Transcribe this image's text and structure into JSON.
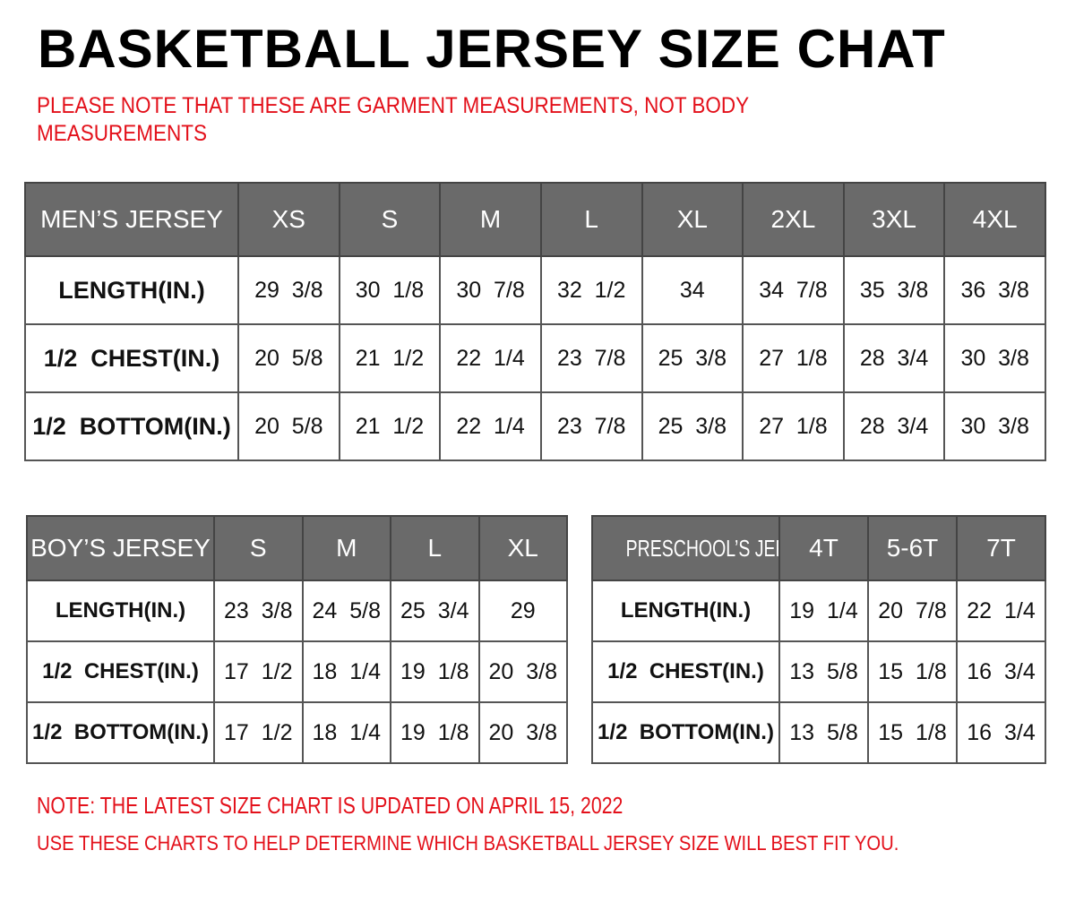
{
  "title": "BASKETBALL JERSEY SIZE CHAT",
  "note_garment": "PLEASE NOTE THAT THESE ARE GARMENT MEASUREMENTS, NOT BODY MEASUREMENTS",
  "note_updated": "NOTE: THE LATEST SIZE CHART IS UPDATED ON APRIL 15, 2022",
  "note_usage": "USE THESE CHARTS TO HELP DETERMINE WHICH  BASKETBALL JERSEY  SIZE WILL BEST FIT YOU.",
  "colors": {
    "header_bg": "#6a6a6a",
    "note_red": "#e3101a"
  },
  "tables": {
    "men": {
      "header": [
        "MEN’S JERSEY",
        "XS",
        "S",
        "M",
        "L",
        "XL",
        "2XL",
        "3XL",
        "4XL"
      ],
      "rows": [
        [
          "LENGTH(IN.)",
          "29  3/8",
          "30  1/8",
          "30  7/8",
          "32  1/2",
          "34",
          "34  7/8",
          "35  3/8",
          "36  3/8"
        ],
        [
          "1/2  CHEST(IN.)",
          "20  5/8",
          "21  1/2",
          "22  1/4",
          "23  7/8",
          "25  3/8",
          "27  1/8",
          "28  3/4",
          "30  3/8"
        ],
        [
          "1/2  BOTTOM(IN.)",
          "20  5/8",
          "21  1/2",
          "22  1/4",
          "23  7/8",
          "25  3/8",
          "27  1/8",
          "28  3/4",
          "30  3/8"
        ]
      ]
    },
    "boy": {
      "header": [
        "BOY’S JERSEY",
        "S",
        "M",
        "L",
        "XL"
      ],
      "rows": [
        [
          "LENGTH(IN.)",
          "23  3/8",
          "24  5/8",
          "25  3/4",
          "29"
        ],
        [
          "1/2  CHEST(IN.)",
          "17  1/2",
          "18  1/4",
          "19  1/8",
          "20  3/8"
        ],
        [
          "1/2  BOTTOM(IN.)",
          "17  1/2",
          "18  1/4",
          "19  1/8",
          "20  3/8"
        ]
      ]
    },
    "pre": {
      "header": [
        "PRESCHOOL’S JERSEY",
        "4T",
        "5-6T",
        "7T"
      ],
      "rows": [
        [
          "LENGTH(IN.)",
          "19  1/4",
          "20  7/8",
          "22  1/4"
        ],
        [
          "1/2  CHEST(IN.)",
          "13  5/8",
          "15  1/8",
          "16  3/4"
        ],
        [
          "1/2  BOTTOM(IN.)",
          "13  5/8",
          "15  1/8",
          "16  3/4"
        ]
      ]
    }
  }
}
